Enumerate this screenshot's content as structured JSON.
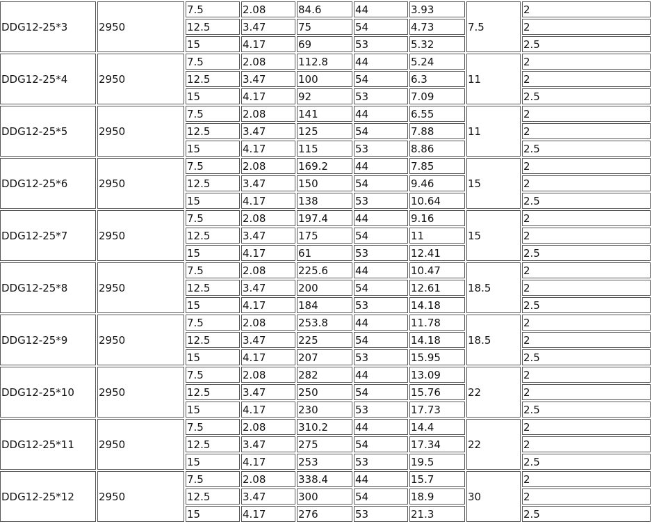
{
  "groups": [
    {
      "model": "DDG12-25*3",
      "speed": "2950",
      "power": "7.5",
      "rows": [
        [
          "7.5",
          "2.08",
          "84.6",
          "44",
          "3.93",
          "2"
        ],
        [
          "12.5",
          "3.47",
          "75",
          "54",
          "4.73",
          "2"
        ],
        [
          "15",
          "4.17",
          "69",
          "53",
          "5.32",
          "2.5"
        ]
      ]
    },
    {
      "model": "DDG12-25*4",
      "speed": "2950",
      "power": "11",
      "rows": [
        [
          "7.5",
          "2.08",
          "112.8",
          "44",
          "5.24",
          "2"
        ],
        [
          "12.5",
          "3.47",
          "100",
          "54",
          "6.3",
          "2"
        ],
        [
          "15",
          "4.17",
          "92",
          "53",
          "7.09",
          "2.5"
        ]
      ]
    },
    {
      "model": "DDG12-25*5",
      "speed": "2950",
      "power": "11",
      "rows": [
        [
          "7.5",
          "2.08",
          "141",
          "44",
          "6.55",
          "2"
        ],
        [
          "12.5",
          "3.47",
          "125",
          "54",
          "7.88",
          "2"
        ],
        [
          "15",
          "4.17",
          "115",
          "53",
          "8.86",
          "2.5"
        ]
      ]
    },
    {
      "model": "DDG12-25*6",
      "speed": "2950",
      "power": "15",
      "rows": [
        [
          "7.5",
          "2.08",
          "169.2",
          "44",
          "7.85",
          "2"
        ],
        [
          "12.5",
          "3.47",
          "150",
          "54",
          "9.46",
          "2"
        ],
        [
          "15",
          "4.17",
          "138",
          "53",
          "10.64",
          "2.5"
        ]
      ]
    },
    {
      "model": "DDG12-25*7",
      "speed": "2950",
      "power": "15",
      "rows": [
        [
          "7.5",
          "2.08",
          "197.4",
          "44",
          "9.16",
          "2"
        ],
        [
          "12.5",
          "3.47",
          "175",
          "54",
          "11",
          "2"
        ],
        [
          "15",
          "4.17",
          "61",
          "53",
          "12.41",
          "2.5"
        ]
      ]
    },
    {
      "model": "DDG12-25*8",
      "speed": "2950",
      "power": "18.5",
      "rows": [
        [
          "7.5",
          "2.08",
          "225.6",
          "44",
          "10.47",
          "2"
        ],
        [
          "12.5",
          "3.47",
          "200",
          "54",
          "12.61",
          "2"
        ],
        [
          "15",
          "4.17",
          "184",
          "53",
          "14.18",
          "2.5"
        ]
      ]
    },
    {
      "model": "DDG12-25*9",
      "speed": "2950",
      "power": "18.5",
      "rows": [
        [
          "7.5",
          "2.08",
          "253.8",
          "44",
          "11.78",
          "2"
        ],
        [
          "12.5",
          "3.47",
          "225",
          "54",
          "14.18",
          "2"
        ],
        [
          "15",
          "4.17",
          "207",
          "53",
          "15.95",
          "2.5"
        ]
      ]
    },
    {
      "model": "DDG12-25*10",
      "speed": "2950",
      "power": "22",
      "rows": [
        [
          "7.5",
          "2.08",
          "282",
          "44",
          "13.09",
          "2"
        ],
        [
          "12.5",
          "3.47",
          "250",
          "54",
          "15.76",
          "2"
        ],
        [
          "15",
          "4.17",
          "230",
          "53",
          "17.73",
          "2.5"
        ]
      ]
    },
    {
      "model": "DDG12-25*11",
      "speed": "2950",
      "power": "22",
      "rows": [
        [
          "7.5",
          "2.08",
          "310.2",
          "44",
          "14.4",
          "2"
        ],
        [
          "12.5",
          "3.47",
          "275",
          "54",
          "17.34",
          "2"
        ],
        [
          "15",
          "4.17",
          "253",
          "53",
          "19.5",
          "2.5"
        ]
      ]
    },
    {
      "model": "DDG12-25*12",
      "speed": "2950",
      "power": "30",
      "rows": [
        [
          "7.5",
          "2.08",
          "338.4",
          "44",
          "15.7",
          "2"
        ],
        [
          "12.5",
          "3.47",
          "300",
          "54",
          "18.9",
          "2"
        ],
        [
          "15",
          "4.17",
          "276",
          "53",
          "21.3",
          "2.5"
        ]
      ]
    }
  ]
}
